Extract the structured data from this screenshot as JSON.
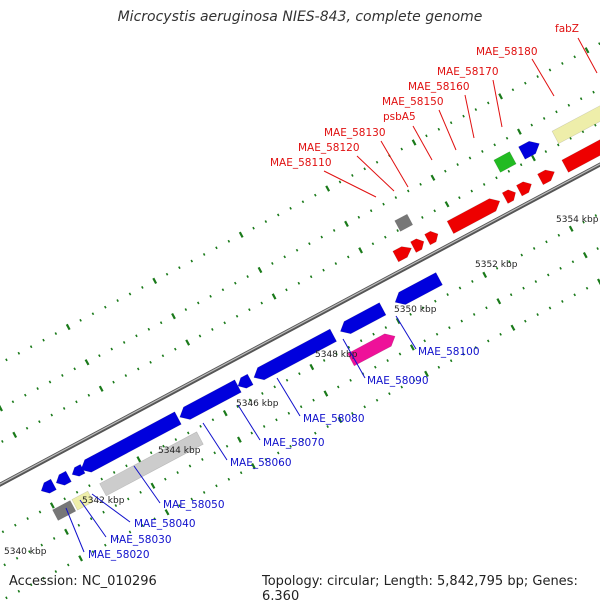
{
  "title": "Microcystis aeruginosa NIES-843, complete genome",
  "footer": {
    "accession_label": "Accession:",
    "accession": "NC_010296",
    "topology_label": "Topology:",
    "topology": "circular",
    "length_label": "Length:",
    "length": "5,842,795 bp",
    "genes_label": "Genes:",
    "genes": "6,360"
  },
  "scale_labels": [
    "5340 kbp",
    "5342 kbp",
    "5344 kbp",
    "5346 kbp",
    "5348 kbp",
    "5350 kbp",
    "5352 kbp",
    "5354 kbp"
  ],
  "forward_gene_labels": [
    "MAE_58110",
    "MAE_58120",
    "MAE_58130",
    "psbA5",
    "MAE_58150",
    "MAE_58160",
    "MAE_58170",
    "MAE_58180",
    "fabZ"
  ],
  "reverse_gene_labels": [
    "MAE_58020",
    "MAE_58030",
    "MAE_58040",
    "MAE_58050",
    "MAE_58060",
    "MAE_58070",
    "MAE_58080",
    "MAE_58090",
    "MAE_58100"
  ],
  "colors": {
    "forward_label": "#e01010",
    "reverse_label": "#1010cc",
    "backbone": "#808080",
    "tick": "#1a7a1a",
    "red_gene": "#ee0000",
    "blue_gene": "#0000dd",
    "magenta_gene": "#ee1199",
    "yellow_gene": "#eeeeaa",
    "gray_gene": "#cccccc",
    "dark_gene": "#777777",
    "green_gene": "#22bb22",
    "cyan_gene": "#22dddd"
  }
}
